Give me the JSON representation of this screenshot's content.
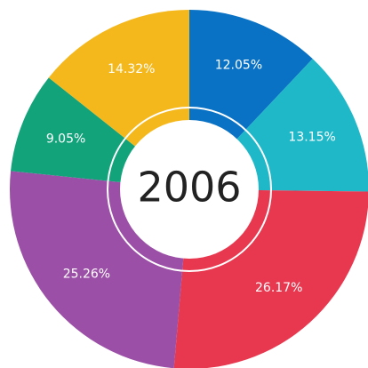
{
  "chart_data": {
    "type": "pie",
    "center_label": "2006",
    "categories": null,
    "values": [
      12.05,
      13.15,
      26.17,
      25.26,
      9.05,
      14.32
    ],
    "value_labels": [
      "12.05%",
      "13.15%",
      "26.17%",
      "25.26%",
      "9.05%",
      "14.32%"
    ],
    "colors": [
      "#0a72c4",
      "#1fb8c9",
      "#e8384f",
      "#9b4fa6",
      "#12a37a",
      "#f5b81c"
    ]
  }
}
